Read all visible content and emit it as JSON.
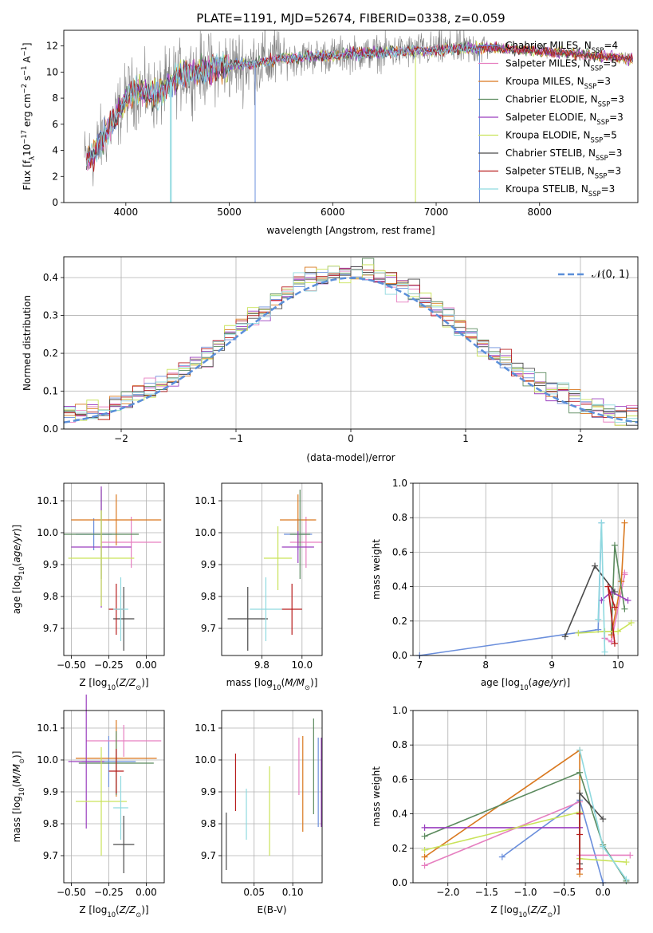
{
  "figure_title": "PLATE=1191, MJD=52674, FIBERID=0338, z=0.059",
  "colors": [
    "#6b8fdc",
    "#e67fc0",
    "#d9781f",
    "#5b8a5e",
    "#9a3fbf",
    "#c9e35a",
    "#4a4a4a",
    "#b71c1c",
    "#8fd9df"
  ],
  "chart_data": [
    {
      "id": "spectrum",
      "type": "line",
      "title": "PLATE=1191, MJD=52674, FIBERID=0338, z=0.059",
      "xlabel": "wavelength [Angstrom, rest frame]",
      "ylabel": "Flux [f_λ10^-17 erg cm^-2 s^-1 A^-1]",
      "xlim": [
        3400,
        8950
      ],
      "ylim": [
        0,
        13.2
      ],
      "xticks": [
        4000,
        5000,
        6000,
        7000,
        8000
      ],
      "yticks": [
        0,
        2,
        4,
        6,
        8,
        10,
        12
      ],
      "grid": false,
      "legend_position": "right",
      "legend": [
        {
          "name": "Chabrier MILES",
          "nssp": "4"
        },
        {
          "name": "Salpeter MILES",
          "nssp": "5"
        },
        {
          "name": "Kroupa MILES",
          "nssp": "3"
        },
        {
          "name": "Chabrier ELODIE",
          "nssp": "3"
        },
        {
          "name": "Salpeter ELODIE",
          "nssp": "3"
        },
        {
          "name": "Kroupa ELODIE",
          "nssp": "5"
        },
        {
          "name": "Chabrier STELIB",
          "nssp": "3"
        },
        {
          "name": "Salpeter STELIB",
          "nssp": "3"
        },
        {
          "name": "Kroupa STELIB",
          "nssp": "3"
        }
      ],
      "continuum": {
        "x": [
          3600,
          3700,
          3800,
          3900,
          4000,
          4100,
          4200,
          4300,
          4400,
          4500,
          4700,
          5000,
          5200,
          5500,
          6000,
          6500,
          7000,
          7500,
          8000,
          8500,
          8900
        ],
        "y": [
          3.2,
          3.8,
          5.3,
          6.5,
          8.0,
          8.6,
          8.4,
          8.2,
          9.0,
          9.6,
          10.1,
          10.5,
          10.6,
          11.0,
          11.3,
          11.5,
          11.7,
          11.9,
          11.6,
          11.3,
          11.0
        ]
      }
    },
    {
      "id": "residuals",
      "type": "histogram",
      "xlabel": "(data-model)/error",
      "ylabel": "Normed distribution",
      "xlim": [
        -2.5,
        2.5
      ],
      "ylim": [
        0,
        0.455
      ],
      "xticks": [
        -2,
        -1,
        0,
        1,
        2
      ],
      "yticks": [
        0.0,
        0.1,
        0.2,
        0.3,
        0.4
      ],
      "grid": true,
      "legend": "𝒩(0, 1)",
      "legend_position": "top-right"
    },
    {
      "id": "age-vs-z",
      "type": "errorbar",
      "xlabel": "Z [log10(Z/Z⊙)]",
      "ylabel": "age  [log10(age/yr)]",
      "xlim": [
        -0.55,
        0.12
      ],
      "ylim": [
        9.615,
        10.155
      ],
      "xticks": [
        -0.5,
        -0.25,
        0.0
      ],
      "yticks": [
        9.7,
        9.8,
        9.9,
        10.0,
        10.1
      ],
      "points": [
        {
          "x": -0.35,
          "y": 9.995,
          "xerr": 0.12,
          "yerr": 0.05
        },
        {
          "x": -0.1,
          "y": 9.97,
          "xerr": 0.2,
          "yerr": 0.08
        },
        {
          "x": -0.2,
          "y": 10.04,
          "xerr": 0.3,
          "yerr": 0.08
        },
        {
          "x": -0.3,
          "y": 9.995,
          "xerr": 0.25,
          "yerr": 0.14
        },
        {
          "x": -0.3,
          "y": 9.955,
          "xerr": 0.2,
          "yerr": 0.19
        },
        {
          "x": -0.3,
          "y": 9.92,
          "xerr": 0.22,
          "yerr": 0.15
        },
        {
          "x": -0.15,
          "y": 9.73,
          "xerr": 0.07,
          "yerr": 0.1
        },
        {
          "x": -0.2,
          "y": 9.76,
          "xerr": 0.05,
          "yerr": 0.08
        },
        {
          "x": -0.17,
          "y": 9.76,
          "xerr": 0.05,
          "yerr": 0.1
        }
      ]
    },
    {
      "id": "age-vs-mass",
      "type": "errorbar",
      "xlabel": "mass [log10(M/M⊙)]",
      "ylabel": "",
      "xlim": [
        9.6,
        10.1
      ],
      "ylim": [
        9.615,
        10.155
      ],
      "xticks": [
        9.8,
        10.0
      ],
      "yticks": [
        9.7,
        9.8,
        9.9,
        10.0,
        10.1
      ],
      "points": [
        {
          "x": 9.98,
          "y": 9.995,
          "xerr": 0.07,
          "yerr": 0.05
        },
        {
          "x": 10.02,
          "y": 9.97,
          "xerr": 0.08,
          "yerr": 0.08
        },
        {
          "x": 9.98,
          "y": 10.04,
          "xerr": 0.09,
          "yerr": 0.08
        },
        {
          "x": 9.99,
          "y": 9.995,
          "xerr": 0.05,
          "yerr": 0.14
        },
        {
          "x": 9.98,
          "y": 9.955,
          "xerr": 0.08,
          "yerr": 0.05
        },
        {
          "x": 9.88,
          "y": 9.92,
          "xerr": 0.07,
          "yerr": 0.1
        },
        {
          "x": 9.73,
          "y": 9.73,
          "xerr": 0.1,
          "yerr": 0.1
        },
        {
          "x": 9.95,
          "y": 9.76,
          "xerr": 0.05,
          "yerr": 0.08
        },
        {
          "x": 9.82,
          "y": 9.76,
          "xerr": 0.08,
          "yerr": 0.1
        }
      ]
    },
    {
      "id": "mass-weight-vs-age",
      "type": "line",
      "xlabel": "age  [log10(age/yr)]",
      "ylabel": "mass weight",
      "xlim": [
        6.9,
        10.3
      ],
      "ylim": [
        0,
        1.0
      ],
      "xticks": [
        7,
        8,
        9,
        10
      ],
      "yticks": [
        0.0,
        0.2,
        0.4,
        0.6,
        0.8,
        1.0
      ],
      "grid": true,
      "series": [
        {
          "x": [
            7.0,
            9.7,
            9.75
          ],
          "y": [
            0.0,
            0.15,
            0.77
          ]
        },
        {
          "x": [
            9.8,
            9.9,
            10.1,
            10.1
          ],
          "y": [
            0.1,
            0.08,
            0.47,
            0.48
          ]
        },
        {
          "x": [
            9.9,
            10.05,
            10.1
          ],
          "y": [
            0.12,
            0.43,
            0.77
          ]
        },
        {
          "x": [
            9.9,
            9.95,
            10.1
          ],
          "y": [
            0.14,
            0.64,
            0.27
          ]
        },
        {
          "x": [
            9.75,
            9.9,
            10.15
          ],
          "y": [
            0.32,
            0.37,
            0.32
          ]
        },
        {
          "x": [
            9.4,
            9.8,
            10.0,
            10.2
          ],
          "y": [
            0.13,
            0.14,
            0.14,
            0.19
          ]
        },
        {
          "x": [
            9.2,
            9.65,
            9.95
          ],
          "y": [
            0.11,
            0.52,
            0.37
          ]
        },
        {
          "x": [
            9.95,
            9.85,
            9.95
          ],
          "y": [
            0.07,
            0.4,
            0.28
          ]
        },
        {
          "x": [
            9.7,
            9.75,
            9.8
          ],
          "y": [
            0.21,
            0.77,
            0.02
          ]
        }
      ]
    },
    {
      "id": "mass-vs-z",
      "type": "errorbar",
      "xlabel": "Z [log10(Z/Z⊙)]",
      "ylabel": "mass [log10(M/M⊙)]",
      "xlim": [
        -0.55,
        0.12
      ],
      "ylim": [
        9.615,
        10.155
      ],
      "xticks": [
        -0.5,
        -0.25,
        0.0
      ],
      "yticks": [
        9.7,
        9.8,
        9.9,
        10.0,
        10.1
      ],
      "points": [
        {
          "x": -0.25,
          "y": 9.995,
          "xerr": 0.18,
          "yerr": 0.08
        },
        {
          "x": -0.15,
          "y": 10.06,
          "xerr": 0.25,
          "yerr": 0.05
        },
        {
          "x": -0.2,
          "y": 10.005,
          "xerr": 0.27,
          "yerr": 0.12
        },
        {
          "x": -0.2,
          "y": 9.99,
          "xerr": 0.25,
          "yerr": 0.1
        },
        {
          "x": -0.4,
          "y": 9.995,
          "xerr": 0.12,
          "yerr": 0.21
        },
        {
          "x": -0.3,
          "y": 9.87,
          "xerr": 0.17,
          "yerr": 0.17
        },
        {
          "x": -0.15,
          "y": 9.735,
          "xerr": 0.07,
          "yerr": 0.09
        },
        {
          "x": -0.2,
          "y": 9.965,
          "xerr": 0.05,
          "yerr": 0.07
        },
        {
          "x": -0.17,
          "y": 9.85,
          "xerr": 0.05,
          "yerr": 0.1
        }
      ]
    },
    {
      "id": "mass-vs-ebv",
      "type": "errorbar",
      "xlabel": "E(B-V)",
      "ylabel": "",
      "xlim": [
        0.008,
        0.138
      ],
      "ylim": [
        9.615,
        10.155
      ],
      "xticks": [
        0.05,
        0.1
      ],
      "yticks": [
        9.7,
        9.8,
        9.9,
        10.0,
        10.1
      ],
      "points": [
        {
          "x": 0.133,
          "y": 9.93,
          "xerr": 0.0,
          "yerr": 0.14
        },
        {
          "x": 0.108,
          "y": 9.98,
          "xerr": 0.0,
          "yerr": 0.09
        },
        {
          "x": 0.113,
          "y": 9.925,
          "xerr": 0.0,
          "yerr": 0.15
        },
        {
          "x": 0.127,
          "y": 9.98,
          "xerr": 0.0,
          "yerr": 0.15
        },
        {
          "x": 0.137,
          "y": 9.93,
          "xerr": 0.0,
          "yerr": 0.14
        },
        {
          "x": 0.07,
          "y": 9.84,
          "xerr": 0.0,
          "yerr": 0.14
        },
        {
          "x": 0.014,
          "y": 9.745,
          "xerr": 0.0,
          "yerr": 0.09
        },
        {
          "x": 0.026,
          "y": 9.93,
          "xerr": 0.0,
          "yerr": 0.09
        },
        {
          "x": 0.04,
          "y": 9.83,
          "xerr": 0.0,
          "yerr": 0.08
        }
      ]
    },
    {
      "id": "mass-weight-vs-z",
      "type": "line",
      "xlabel": "Z [log10(Z/Z⊙)]",
      "ylabel": "mass weight",
      "xlim": [
        -2.45,
        0.45
      ],
      "ylim": [
        0,
        1.0
      ],
      "xticks": [
        -2.0,
        -1.5,
        -1.0,
        -0.5,
        0.0
      ],
      "yticks": [
        0.0,
        0.2,
        0.4,
        0.6,
        0.8,
        1.0
      ],
      "grid": true,
      "series": [
        {
          "x": [
            -1.3,
            -0.3,
            0.0
          ],
          "y": [
            0.15,
            0.48,
            0.0
          ]
        },
        {
          "x": [
            -2.3,
            -0.3,
            -0.3,
            0.35
          ],
          "y": [
            0.1,
            0.47,
            0.16,
            0.16
          ]
        },
        {
          "x": [
            -2.3,
            -0.3,
            -0.3
          ],
          "y": [
            0.15,
            0.77,
            0.05
          ]
        },
        {
          "x": [
            -2.3,
            -0.3,
            0.0,
            0.3
          ],
          "y": [
            0.27,
            0.64,
            0.22,
            0.01
          ]
        },
        {
          "x": [
            -2.3,
            -0.3,
            -0.3
          ],
          "y": [
            0.32,
            0.32,
            0.32
          ]
        },
        {
          "x": [
            -2.3,
            -0.3,
            -0.3,
            0.3
          ],
          "y": [
            0.19,
            0.41,
            0.14,
            0.12
          ]
        },
        {
          "x": [
            -0.3,
            -0.3,
            0.0
          ],
          "y": [
            0.11,
            0.52,
            0.37
          ]
        },
        {
          "x": [
            -0.3,
            -0.3,
            -0.3
          ],
          "y": [
            0.08,
            0.4,
            0.28
          ]
        },
        {
          "x": [
            -0.3,
            0.0,
            0.3
          ],
          "y": [
            0.77,
            0.21,
            0.02
          ]
        }
      ]
    }
  ]
}
